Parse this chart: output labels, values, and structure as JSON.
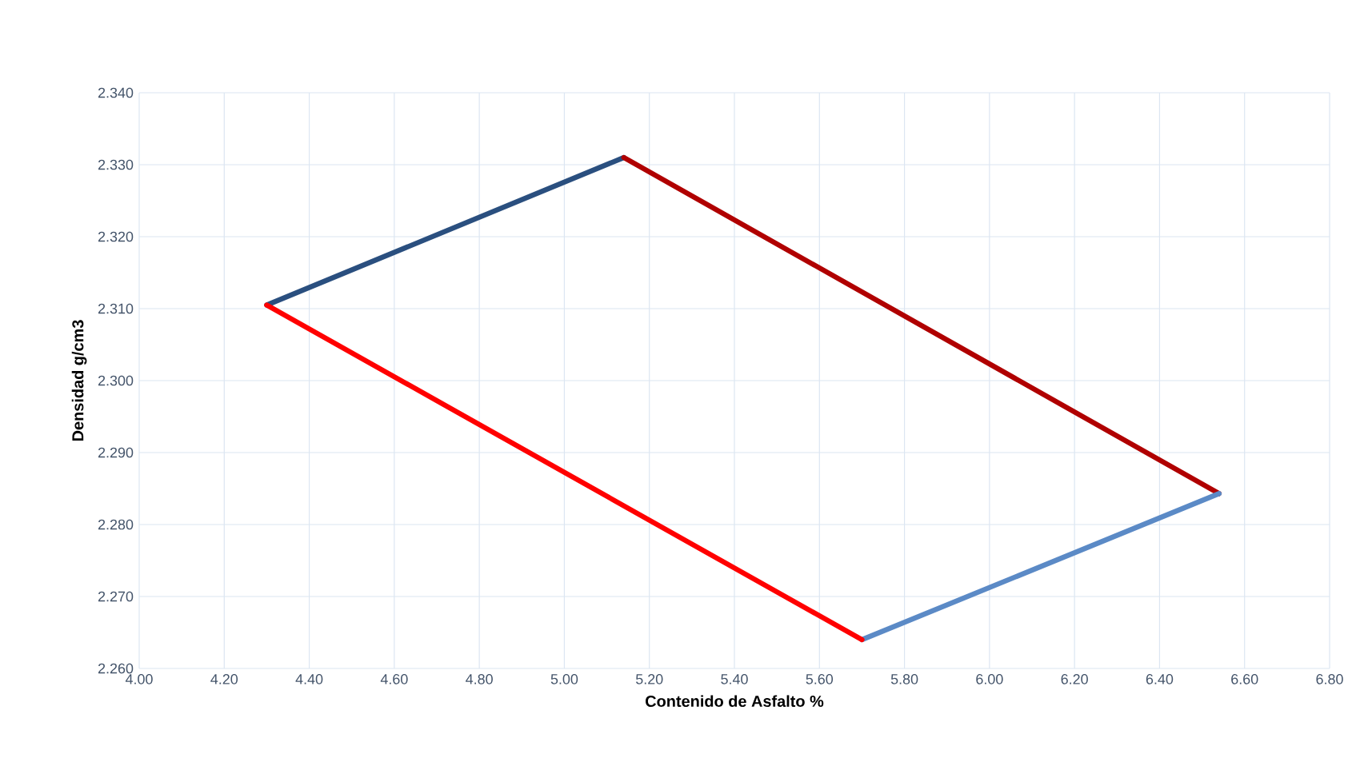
{
  "chart_data": {
    "type": "line",
    "xlabel": "Contenido de Asfalto %",
    "ylabel": "Densidad g/cm3",
    "series": [
      {
        "color": "#2a4f7f",
        "x": [
          4.3,
          5.14
        ],
        "values": [
          2.3105,
          2.331
        ]
      },
      {
        "color": "#b00000",
        "x": [
          5.14,
          6.54
        ],
        "values": [
          2.331,
          2.2843
        ]
      },
      {
        "color": "#5b8ac6",
        "x": [
          5.7,
          6.54
        ],
        "values": [
          2.264,
          2.2843
        ]
      },
      {
        "color": "#ff0000",
        "x": [
          4.3,
          5.7
        ],
        "values": [
          2.3105,
          2.264
        ]
      }
    ],
    "xlim": [
      4.0,
      6.8
    ],
    "ylim": [
      2.26,
      2.34
    ],
    "xticks": [
      {
        "value": 4.0,
        "label": "4.00"
      },
      {
        "value": 4.2,
        "label": "4.20"
      },
      {
        "value": 4.4,
        "label": "4.40"
      },
      {
        "value": 4.6,
        "label": "4.60"
      },
      {
        "value": 4.8,
        "label": "4.80"
      },
      {
        "value": 5.0,
        "label": "5.00"
      },
      {
        "value": 5.2,
        "label": "5.20"
      },
      {
        "value": 5.4,
        "label": "5.40"
      },
      {
        "value": 5.6,
        "label": "5.60"
      },
      {
        "value": 5.8,
        "label": "5.80"
      },
      {
        "value": 6.0,
        "label": "6.00"
      },
      {
        "value": 6.2,
        "label": "6.20"
      },
      {
        "value": 6.4,
        "label": "6.40"
      },
      {
        "value": 6.6,
        "label": "6.60"
      },
      {
        "value": 6.8,
        "label": "6.80"
      }
    ],
    "yticks": [
      {
        "value": 2.26,
        "label": "2.260"
      },
      {
        "value": 2.27,
        "label": "2.270"
      },
      {
        "value": 2.28,
        "label": "2.280"
      },
      {
        "value": 2.29,
        "label": "2.290"
      },
      {
        "value": 2.3,
        "label": "2.300"
      },
      {
        "value": 2.31,
        "label": "2.310"
      },
      {
        "value": 2.32,
        "label": "2.320"
      },
      {
        "value": 2.33,
        "label": "2.330"
      },
      {
        "value": 2.34,
        "label": "2.340"
      }
    ],
    "grid": true,
    "marker": "none",
    "line_style": "solid"
  }
}
